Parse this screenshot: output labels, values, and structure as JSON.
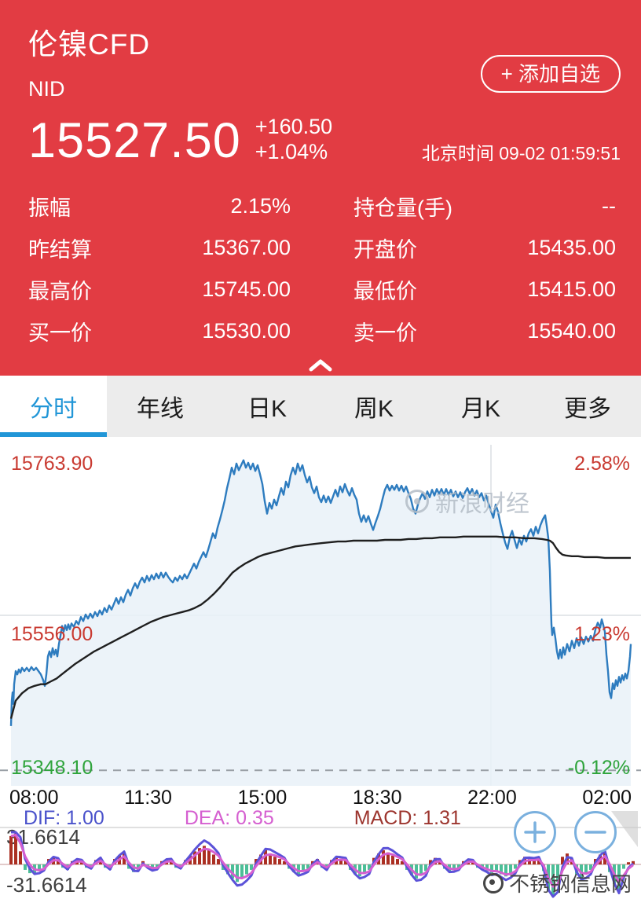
{
  "header": {
    "title": "伦镍CFD",
    "symbol": "NID",
    "add_watchlist_label": "+ 添加自选",
    "price": "15527.50",
    "change": "+160.50",
    "change_pct": "+1.04%",
    "timestamp": "北京时间 09-02 01:59:51",
    "bg_color": "#e23c43",
    "stats": [
      {
        "label": "振幅",
        "value": "2.15%"
      },
      {
        "label": "持仓量(手)",
        "value": "--"
      },
      {
        "label": "昨结算",
        "value": "15367.00"
      },
      {
        "label": "开盘价",
        "value": "15435.00"
      },
      {
        "label": "最高价",
        "value": "15745.00"
      },
      {
        "label": "最低价",
        "value": "15415.00"
      },
      {
        "label": "买一价",
        "value": "15530.00"
      },
      {
        "label": "卖一价",
        "value": "15540.00"
      }
    ]
  },
  "tabs": {
    "items": [
      {
        "label": "分时",
        "active": true
      },
      {
        "label": "年线",
        "active": false
      },
      {
        "label": "日K",
        "active": false
      },
      {
        "label": "周K",
        "active": false
      },
      {
        "label": "月K",
        "active": false
      },
      {
        "label": "更多",
        "active": false
      }
    ]
  },
  "indicator": {
    "dif": "DIF: 1.00",
    "dea": "DEA: 0.35",
    "macd": "MACD: 1.31",
    "max": "31.6614",
    "min": "-31.6614"
  },
  "watermarks": {
    "chart": "新浪财经",
    "page": "不锈钢信息网"
  },
  "colors": {
    "up_red": "#c93a31",
    "down_green": "#2fa43c",
    "price_line": "#2e7cbf",
    "price_fill": "#e9f1f8",
    "avg_line": "#1f1f1f",
    "grid": "#e4e7ea",
    "dash_line": "#9aa0a6",
    "hist_up": "#ab2f22",
    "hist_down": "#4cbe97",
    "dif_line": "#5b52d8",
    "dea_line": "#d55fd0",
    "zero_line": "#d9b8b8"
  },
  "chart_data": {
    "type": "line",
    "title": "伦镍CFD 分时图",
    "x_ticks": [
      "08:00",
      "11:30",
      "15:00",
      "18:30",
      "22:00",
      "02:00"
    ],
    "ylim": [
      15348.1,
      15763.9
    ],
    "top_price": "15763.90",
    "top_pct": "2.58%",
    "mid_price": "15556.00",
    "mid_pct": "1.23%",
    "bottom_price": "15348.10",
    "bottom_pct": "-0.12%",
    "mid_level": 15556.0,
    "prev_settlement": 15367.0,
    "grid_vline_x": 625,
    "series": [
      {
        "name": "price",
        "points": [
          14,
          15421,
          15,
          15452,
          16,
          15462,
          17,
          15448,
          18,
          15472,
          20,
          15488,
          22,
          15484,
          24,
          15490,
          26,
          15486,
          28,
          15492,
          31,
          15488,
          34,
          15492,
          37,
          15488,
          40,
          15493,
          43,
          15489,
          46,
          15492,
          49,
          15488,
          52,
          15484,
          55,
          15477,
          57,
          15470,
          59,
          15484,
          61,
          15506,
          63,
          15512,
          65,
          15505,
          67,
          15516,
          69,
          15508,
          71,
          15514,
          73,
          15506,
          75,
          15521,
          77,
          15531,
          79,
          15543,
          81,
          15536,
          83,
          15544,
          85,
          15538,
          87,
          15545,
          89,
          15539,
          91,
          15546,
          94,
          15542,
          97,
          15549,
          100,
          15545,
          103,
          15554,
          106,
          15549,
          109,
          15557,
          112,
          15552,
          115,
          15558,
          118,
          15553,
          121,
          15560,
          124,
          15555,
          127,
          15562,
          130,
          15557,
          133,
          15565,
          136,
          15560,
          139,
          15568,
          142,
          15563,
          145,
          15570,
          148,
          15577,
          151,
          15570,
          154,
          15578,
          157,
          15572,
          160,
          15581,
          163,
          15587,
          166,
          15580,
          169,
          15589,
          172,
          15595,
          175,
          15589,
          178,
          15597,
          181,
          15602,
          184,
          15596,
          187,
          15604,
          190,
          15598,
          193,
          15605,
          196,
          15600,
          199,
          15607,
          202,
          15601,
          205,
          15608,
          208,
          15602,
          211,
          15608,
          214,
          15603,
          217,
          15599,
          220,
          15596,
          223,
          15602,
          226,
          15598,
          229,
          15604,
          232,
          15600,
          235,
          15606,
          238,
          15601,
          241,
          15607,
          244,
          15613,
          247,
          15619,
          250,
          15613,
          253,
          15621,
          256,
          15627,
          259,
          15633,
          262,
          15627,
          265,
          15636,
          268,
          15646,
          271,
          15656,
          274,
          15650,
          277,
          15663,
          280,
          15673,
          283,
          15684,
          286,
          15696,
          289,
          15711,
          292,
          15723,
          295,
          15736,
          298,
          15728,
          301,
          15741,
          304,
          15733,
          307,
          15739,
          310,
          15745,
          313,
          15736,
          316,
          15742,
          319,
          15734,
          322,
          15741,
          325,
          15732,
          328,
          15739,
          331,
          15728,
          334,
          15716,
          337,
          15695,
          340,
          15680,
          343,
          15693,
          346,
          15686,
          349,
          15697,
          352,
          15690,
          355,
          15701,
          358,
          15711,
          361,
          15703,
          364,
          15719,
          367,
          15712,
          370,
          15727,
          373,
          15736,
          376,
          15728,
          379,
          15741,
          382,
          15732,
          385,
          15739,
          388,
          15727,
          391,
          15718,
          394,
          15725,
          397,
          15712,
          400,
          15705,
          403,
          15713,
          406,
          15700,
          409,
          15694,
          412,
          15702,
          415,
          15694,
          418,
          15701,
          421,
          15693,
          424,
          15701,
          427,
          15709,
          430,
          15701,
          433,
          15713,
          436,
          15706,
          439,
          15716,
          442,
          15708,
          445,
          15702,
          448,
          15711,
          451,
          15703,
          454,
          15697,
          457,
          15680,
          460,
          15670,
          463,
          15678,
          466,
          15670,
          469,
          15677,
          472,
          15668,
          475,
          15660,
          478,
          15669,
          481,
          15677,
          484,
          15686,
          487,
          15698,
          490,
          15709,
          493,
          15715,
          496,
          15708,
          499,
          15714,
          502,
          15709,
          505,
          15715,
          508,
          15708,
          511,
          15714,
          514,
          15707,
          517,
          15713,
          520,
          15705,
          523,
          15698,
          526,
          15686,
          529,
          15680,
          532,
          15691,
          535,
          15699,
          538,
          15705,
          541,
          15698,
          544,
          15707,
          547,
          15700,
          550,
          15709,
          553,
          15702,
          556,
          15710,
          559,
          15704,
          562,
          15710,
          565,
          15703,
          568,
          15710,
          571,
          15703,
          574,
          15709,
          577,
          15701,
          580,
          15707,
          583,
          15700,
          586,
          15706,
          589,
          15699,
          592,
          15706,
          595,
          15711,
          598,
          15704,
          601,
          15710,
          604,
          15702,
          607,
          15708,
          610,
          15700,
          613,
          15705,
          616,
          15696,
          619,
          15702,
          622,
          15692,
          625,
          15683,
          628,
          15675,
          631,
          15691,
          634,
          15682,
          637,
          15668,
          640,
          15656,
          643,
          15645,
          646,
          15637,
          649,
          15651,
          652,
          15659,
          655,
          15648,
          658,
          15638,
          661,
          15649,
          664,
          15642,
          667,
          15653,
          670,
          15646,
          673,
          15656,
          676,
          15661,
          679,
          15653,
          682,
          15664,
          685,
          15656,
          688,
          15666,
          691,
          15673,
          694,
          15678,
          696,
          15665,
          698,
          15650,
          700,
          15610,
          701,
          15575,
          702,
          15545,
          703,
          15532,
          705,
          15541,
          707,
          15528,
          709,
          15512,
          711,
          15503,
          713,
          15514,
          715,
          15504,
          717,
          15517,
          719,
          15508,
          722,
          15521,
          725,
          15512,
          728,
          15525,
          731,
          15516,
          734,
          15528,
          737,
          15519,
          740,
          15529,
          743,
          15521,
          746,
          15530,
          749,
          15524,
          752,
          15531,
          755,
          15525,
          758,
          15539,
          761,
          15547,
          764,
          15541,
          766,
          15551,
          768,
          15544,
          770,
          15536,
          772,
          15508,
          774,
          15488,
          776,
          15462,
          778,
          15455,
          780,
          15473,
          782,
          15466,
          784,
          15477,
          786,
          15470,
          788,
          15481,
          790,
          15474,
          792,
          15483,
          794,
          15477,
          796,
          15485,
          798,
          15479,
          800,
          15488,
          802,
          15506,
          803,
          15521
        ]
      },
      {
        "name": "average",
        "points": [
          14,
          15430,
          20,
          15452,
          28,
          15461,
          36,
          15467,
          44,
          15470,
          52,
          15472,
          58,
          15472,
          64,
          15475,
          72,
          15479,
          80,
          15485,
          88,
          15491,
          96,
          15497,
          104,
          15502,
          112,
          15507,
          120,
          15512,
          128,
          15516,
          136,
          15520,
          144,
          15524,
          152,
          15528,
          160,
          15532,
          168,
          15536,
          176,
          15540,
          184,
          15544,
          192,
          15548,
          200,
          15551,
          208,
          15554,
          216,
          15556,
          224,
          15558,
          232,
          15560,
          240,
          15562,
          248,
          15565,
          256,
          15569,
          264,
          15575,
          272,
          15582,
          280,
          15590,
          288,
          15599,
          296,
          15608,
          304,
          15614,
          312,
          15619,
          320,
          15623,
          328,
          15627,
          336,
          15630,
          344,
          15632,
          352,
          15634,
          360,
          15636,
          368,
          15638,
          376,
          15640,
          384,
          15641,
          392,
          15642,
          400,
          15643,
          410,
          15644,
          420,
          15645,
          430,
          15646,
          440,
          15646,
          450,
          15647,
          460,
          15647,
          470,
          15647,
          480,
          15647,
          490,
          15648,
          500,
          15648,
          510,
          15648,
          520,
          15649,
          530,
          15649,
          540,
          15650,
          550,
          15650,
          560,
          15651,
          570,
          15651,
          580,
          15651,
          590,
          15652,
          600,
          15652,
          610,
          15652,
          620,
          15652,
          632,
          15652,
          644,
          15651,
          656,
          15651,
          668,
          15650,
          680,
          15650,
          690,
          15649,
          696,
          15648,
          700,
          15647,
          704,
          15644,
          708,
          15638,
          712,
          15633,
          716,
          15630,
          720,
          15629,
          728,
          15628,
          736,
          15628,
          744,
          15627,
          752,
          15627,
          760,
          15627,
          770,
          15626,
          780,
          15626,
          790,
          15626,
          803,
          15626
        ]
      }
    ],
    "macd": {
      "dif": 1.0,
      "dea": 0.35,
      "macd": 1.31,
      "range": [
        -31.6614,
        31.6614
      ],
      "hist": [
        14,
        26,
        20,
        28,
        26,
        12,
        32,
        -5,
        38,
        -8,
        44,
        -9,
        50,
        -6,
        56,
        -3,
        62,
        5,
        68,
        7,
        74,
        4,
        80,
        -3,
        86,
        -5,
        92,
        3,
        98,
        5,
        104,
        3,
        110,
        -3,
        116,
        -4,
        122,
        4,
        128,
        6,
        134,
        -3,
        140,
        -5,
        146,
        5,
        152,
        8,
        158,
        10,
        164,
        -4,
        170,
        -7,
        176,
        -5,
        182,
        3,
        188,
        -3,
        194,
        -5,
        200,
        -3,
        206,
        3,
        212,
        5,
        218,
        4,
        224,
        -3,
        230,
        -4,
        236,
        4,
        242,
        8,
        248,
        12,
        254,
        15,
        260,
        17,
        266,
        13,
        272,
        9,
        278,
        5,
        284,
        -5,
        290,
        -9,
        296,
        -13,
        302,
        -16,
        308,
        -13,
        314,
        -9,
        320,
        -5,
        326,
        5,
        332,
        9,
        338,
        13,
        344,
        10,
        350,
        7,
        356,
        5,
        362,
        3,
        368,
        -4,
        374,
        -7,
        380,
        -9,
        386,
        -6,
        392,
        -4,
        398,
        3,
        404,
        5,
        410,
        -3,
        416,
        -5,
        422,
        4,
        428,
        7,
        434,
        5,
        440,
        4,
        446,
        -5,
        452,
        -9,
        458,
        -11,
        464,
        -8,
        470,
        -5,
        476,
        6,
        482,
        10,
        488,
        13,
        494,
        11,
        500,
        8,
        506,
        5,
        512,
        3,
        518,
        -5,
        524,
        -10,
        530,
        -13,
        536,
        -10,
        542,
        -6,
        548,
        4,
        554,
        6,
        560,
        4,
        566,
        -4,
        572,
        -7,
        578,
        -5,
        584,
        -3,
        590,
        3,
        596,
        5,
        602,
        3,
        608,
        -3,
        614,
        -5,
        620,
        -6,
        626,
        -8,
        632,
        -6,
        638,
        -9,
        644,
        -11,
        650,
        -8,
        656,
        -4,
        662,
        4,
        668,
        7,
        674,
        5,
        680,
        4,
        686,
        5,
        692,
        -6,
        698,
        -24,
        704,
        -28,
        710,
        -16,
        716,
        7,
        722,
        10,
        728,
        5,
        734,
        -9,
        740,
        -13,
        746,
        -9,
        752,
        -5,
        758,
        5,
        764,
        9,
        770,
        11,
        776,
        -7,
        782,
        -18,
        788,
        -23,
        794,
        -4,
        800,
        2,
        806,
        3
      ]
    }
  }
}
